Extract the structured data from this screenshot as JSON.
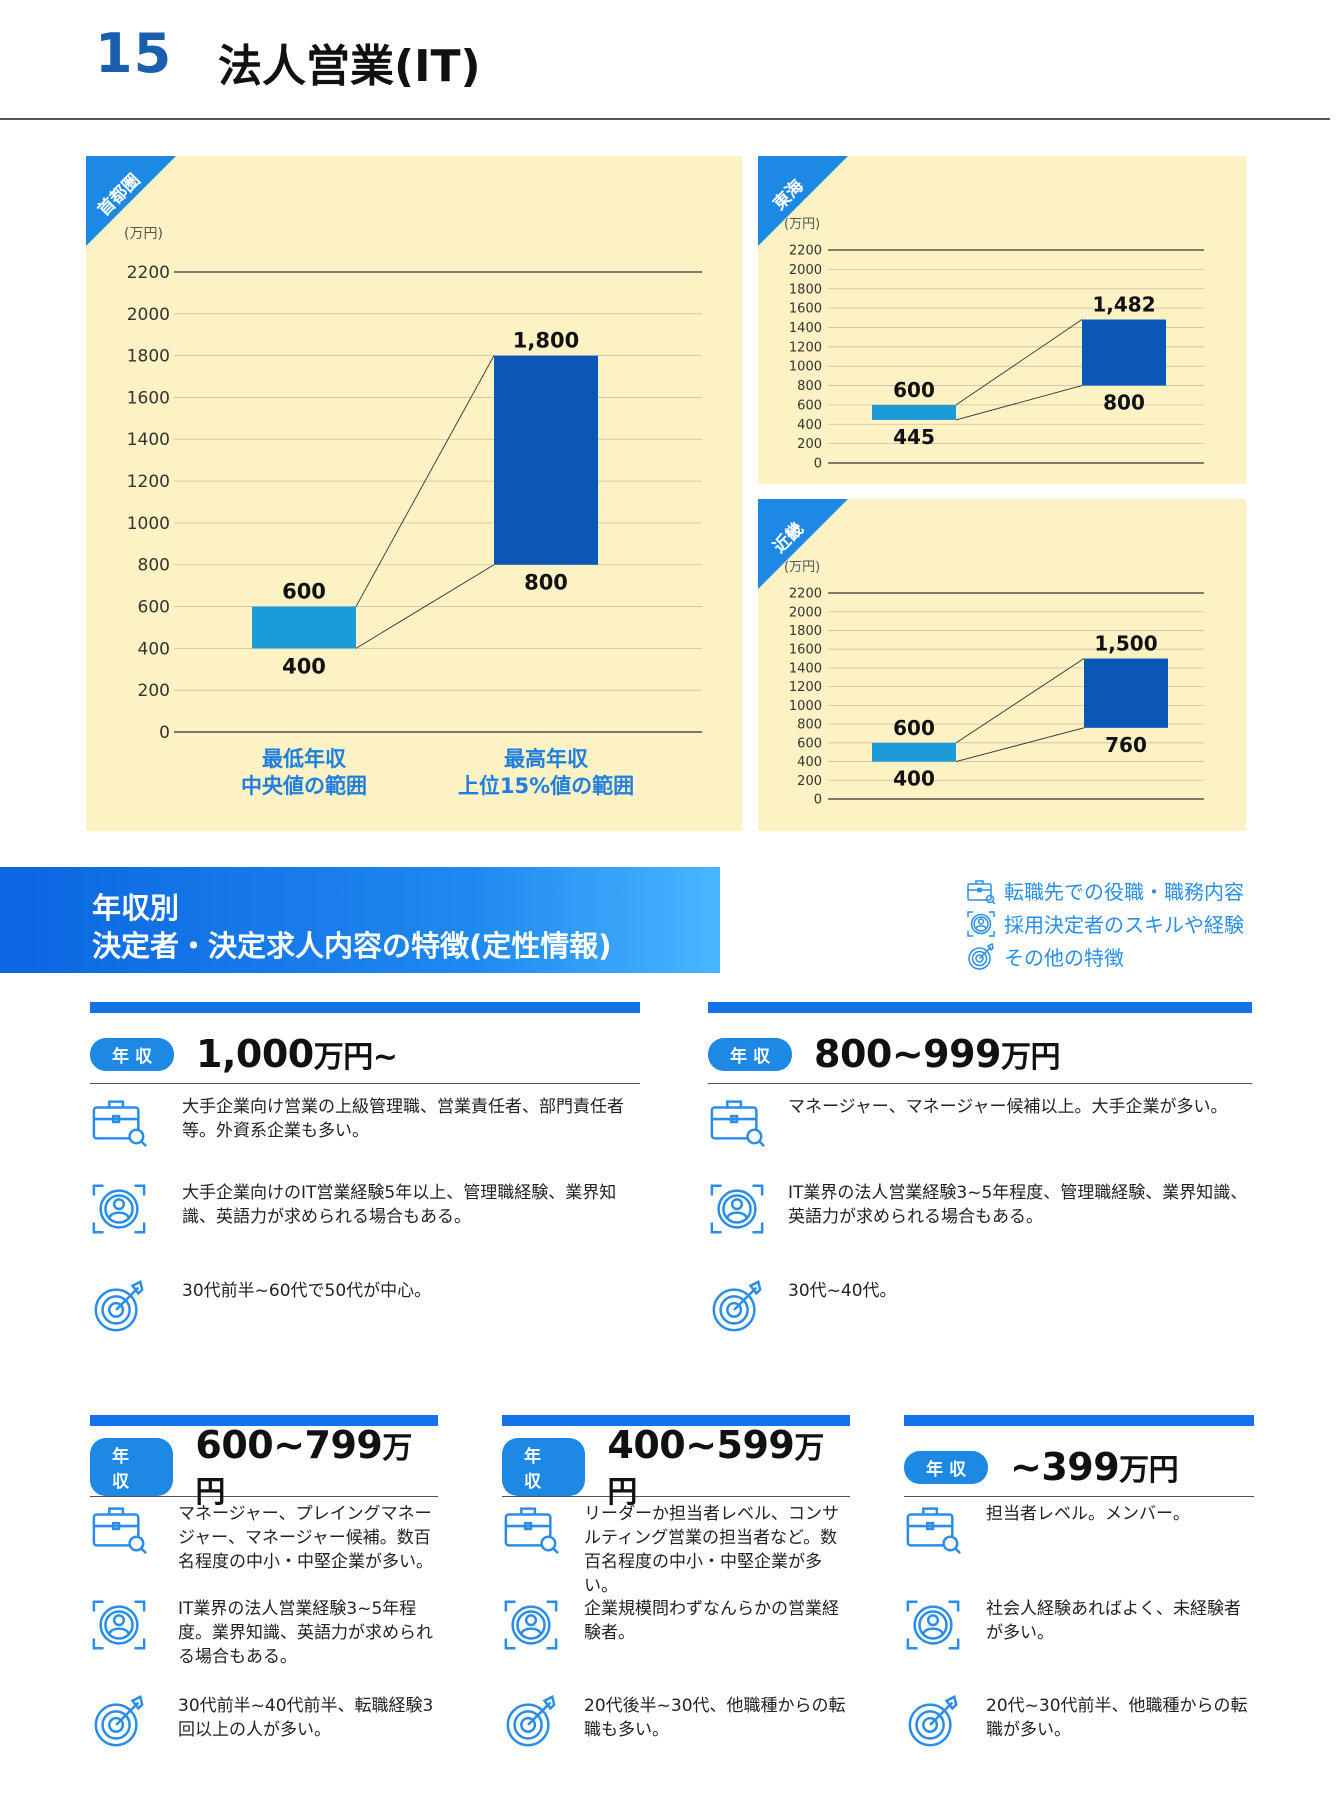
{
  "header": {
    "page_number": "15",
    "title": "法人営業(IT)"
  },
  "units_label": "(万円)",
  "panels": {
    "shutoken": {
      "region": "首都圏"
    },
    "tokai": {
      "region": "東海"
    },
    "kinki": {
      "region": "近畿"
    }
  },
  "axis_labels": {
    "category_1_line1": "最低年収",
    "category_1_line2": "中央値の範囲",
    "category_2_line1": "最高年収",
    "category_2_line2": "上位15%値の範囲"
  },
  "chart_data": [
    {
      "type": "bar",
      "title": "首都圏",
      "ylabel": "(万円)",
      "ylim": [
        0,
        2200
      ],
      "yticks": [
        "0",
        "200",
        "400",
        "600",
        "800",
        "1000",
        "1200",
        "1400",
        "1600",
        "1800",
        "2000",
        "2200"
      ],
      "categories": [
        "最低年収 中央値の範囲",
        "最高年収 上位15%値の範囲"
      ],
      "series": [
        {
          "low": [
            400,
            800
          ],
          "high": [
            600,
            1800
          ]
        }
      ],
      "labels": {
        "low": [
          "400",
          "800"
        ],
        "high": [
          "600",
          "1,800"
        ]
      },
      "colors": [
        "#1a9ad6",
        "#0a57b5"
      ]
    },
    {
      "type": "bar",
      "title": "東海",
      "ylabel": "(万円)",
      "ylim": [
        0,
        2200
      ],
      "yticks": [
        "0",
        "200",
        "400",
        "600",
        "800",
        "1000",
        "1200",
        "1400",
        "1600",
        "1800",
        "2000",
        "2200"
      ],
      "categories": [
        "最低年収 中央値の範囲",
        "最高年収 上位15%値の範囲"
      ],
      "series": [
        {
          "low": [
            445,
            800
          ],
          "high": [
            600,
            1482
          ]
        }
      ],
      "labels": {
        "low": [
          "445",
          "800"
        ],
        "high": [
          "600",
          "1,482"
        ]
      },
      "colors": [
        "#1a9ad6",
        "#0a57b5"
      ]
    },
    {
      "type": "bar",
      "title": "近畿",
      "ylabel": "(万円)",
      "ylim": [
        0,
        2200
      ],
      "yticks": [
        "0",
        "200",
        "400",
        "600",
        "800",
        "1000",
        "1200",
        "1400",
        "1600",
        "1800",
        "2000",
        "2200"
      ],
      "categories": [
        "最低年収 中央値の範囲",
        "最高年収 上位15%値の範囲"
      ],
      "series": [
        {
          "low": [
            400,
            760
          ],
          "high": [
            600,
            1500
          ]
        }
      ],
      "labels": {
        "low": [
          "400",
          "760"
        ],
        "high": [
          "600",
          "1,500"
        ]
      },
      "colors": [
        "#1a9ad6",
        "#0a57b5"
      ]
    }
  ],
  "section": {
    "title_line1": "年収別",
    "title_line2": "決定者・決定求人内容の特徴(定性情報)"
  },
  "legend": {
    "role": "転職先での役職・職務内容",
    "skills": "採用決定者のスキルや経験",
    "other": "その他の特徴"
  },
  "pill_label": "年収",
  "tiers": [
    {
      "range": "1,000",
      "unit": "万円~",
      "role": "大手企業向け営業の上級管理職、営業責任者、部門責任者等。外資系企業も多い。",
      "skills": "大手企業向けのIT営業経験5年以上、管理職経験、業界知識、英語力が求められる場合もある。",
      "other": "30代前半~60代で50代が中心。"
    },
    {
      "range": "800~999",
      "unit": "万円",
      "role": "マネージャー、マネージャー候補以上。大手企業が多い。",
      "skills": "IT業界の法人営業経験3~5年程度、管理職経験、業界知識、英語力が求められる場合もある。",
      "other": "30代~40代。"
    },
    {
      "range": "600~799",
      "unit": "万円",
      "role": "マネージャー、プレイングマネージャー、マネージャー候補。数百名程度の中小・中堅企業が多い。",
      "skills": "IT業界の法人営業経験3~5年程度。業界知識、英語力が求められる場合もある。",
      "other": "30代前半~40代前半、転職経験3回以上の人が多い。"
    },
    {
      "range": "400~599",
      "unit": "万円",
      "role": "リーダーか担当者レベル、コンサルティング営業の担当者など。数百名程度の中小・中堅企業が多い。",
      "skills": "企業規模問わずなんらかの営業経験者。",
      "other": "20代後半~30代、他職種からの転職も多い。"
    },
    {
      "range": "~399",
      "unit": "万円",
      "role": "担当者レベル。メンバー。",
      "skills": "社会人経験あればよく、未経験者が多い。",
      "other": "20代~30代前半、他職種からの転職が多い。"
    }
  ],
  "icons": {
    "role": "briefcase-icon",
    "skills": "person-target-icon",
    "other": "target-arrow-icon"
  }
}
